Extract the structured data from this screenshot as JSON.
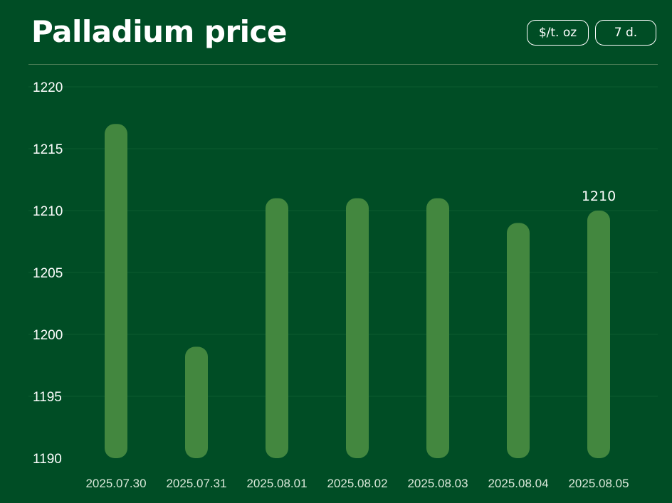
{
  "header": {
    "title": "Palladium price",
    "unit_label": "$/t. oz",
    "range_label": "7 d."
  },
  "colors": {
    "background": "#004d25",
    "bar": "#43873f",
    "grid": "#0d5a2e"
  },
  "chart_data": {
    "type": "bar",
    "categories": [
      "2025.07.30",
      "2025.07.31",
      "2025.08.01",
      "2025.08.02",
      "2025.08.03",
      "2025.08.04",
      "2025.08.05"
    ],
    "values": [
      1217,
      1199,
      1211,
      1211,
      1211,
      1209,
      1210
    ],
    "ylim": [
      1190,
      1220
    ],
    "yticks": [
      1190,
      1195,
      1200,
      1205,
      1210,
      1215,
      1220
    ],
    "grid": true,
    "data_labels": [
      {
        "index": 6,
        "text": "1210"
      }
    ]
  }
}
